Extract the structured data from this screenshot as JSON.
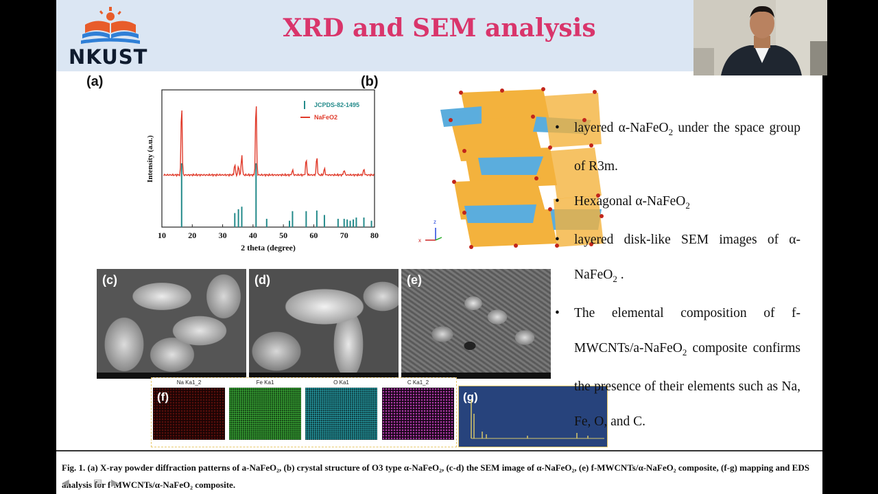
{
  "header": {
    "logo_text": "NKUST",
    "title": "XRD and SEM analysis"
  },
  "panels": {
    "a": "(a)",
    "b": "(b)",
    "c": "(c)",
    "d": "(d)",
    "e": "(e)",
    "f": "(f)",
    "g": "(g)"
  },
  "xrd_chart": {
    "chart_data": {
      "type": "line",
      "xlabel": "2 theta (degree)",
      "ylabel": "Intensity (a.u.)",
      "xlim": [
        10,
        80
      ],
      "xticks": [
        10,
        20,
        30,
        40,
        50,
        60,
        70,
        80
      ],
      "legend": [
        "JCPDS-82-1495",
        "NaFeO2"
      ],
      "legend_position": "top-right",
      "series": [
        {
          "name": "NaFeO2",
          "peaks_x": [
            16.5,
            34.0,
            35.2,
            36.3,
            41.0,
            53.0,
            57.5,
            61.0,
            63.5,
            70.0,
            76.5
          ],
          "peaks_rel": [
            1.0,
            0.15,
            0.12,
            0.28,
            1.05,
            0.07,
            0.22,
            0.25,
            0.09,
            0.07,
            0.08
          ]
        },
        {
          "name": "JCPDS-82-1495",
          "lines_x": [
            16.5,
            34.0,
            35.2,
            36.3,
            41.0,
            44.5,
            52.0,
            53.0,
            57.5,
            61.0,
            63.5,
            68.0,
            70.0,
            71.0,
            72.0,
            73.0,
            74.0,
            76.5,
            79.0
          ],
          "lines_rel": [
            1.0,
            0.22,
            0.28,
            0.32,
            1.0,
            0.13,
            0.1,
            0.25,
            0.25,
            0.26,
            0.19,
            0.13,
            0.13,
            0.12,
            0.1,
            0.12,
            0.15,
            0.15,
            0.1
          ]
        }
      ]
    }
  },
  "colors": {
    "title": "#d9356b",
    "jcpds": "#238a8a",
    "nafeo2": "#e03a2a",
    "octa_orange": "#f2a51c",
    "octa_blue": "#3f9fd8"
  },
  "maps": [
    {
      "title": "Na Ka1_2",
      "color": "#d4261e"
    },
    {
      "title": "Fe Ka1",
      "color": "#3db33a"
    },
    {
      "title": "O Ka1",
      "color": "#29a7b0"
    },
    {
      "title": "C Ka1_2",
      "color": "#b03aa8"
    }
  ],
  "bullets": [
    {
      "pre": "layered α-NaFeO",
      "sub": "2",
      "post": " under the space group of R3m."
    },
    {
      "pre": "Hexagonal α-NaFeO",
      "sub": "2",
      "post": ""
    },
    {
      "pre": "layered disk-like SEM images of α-NaFeO",
      "sub": "2",
      "post": " ."
    },
    {
      "pre": "The elemental composition of f-MWCNTs/a-NaFeO",
      "sub": "2",
      "post": " composite confirms the presence of their elements such as Na, Fe, O, and C."
    }
  ],
  "caption": "Fig. 1. (a) X-ray powder diffraction patterns of a-NaFeO₂, (b) crystal structure of O3 type α-NaFeO₂, (c-d) the SEM image of α-NaFeO₂, (e) f-MWCNTs/α-NaFeO₂ composite, (f-g) mapping and EDS analysis for f-MWCNTs/α-NaFeO₂ composite."
}
